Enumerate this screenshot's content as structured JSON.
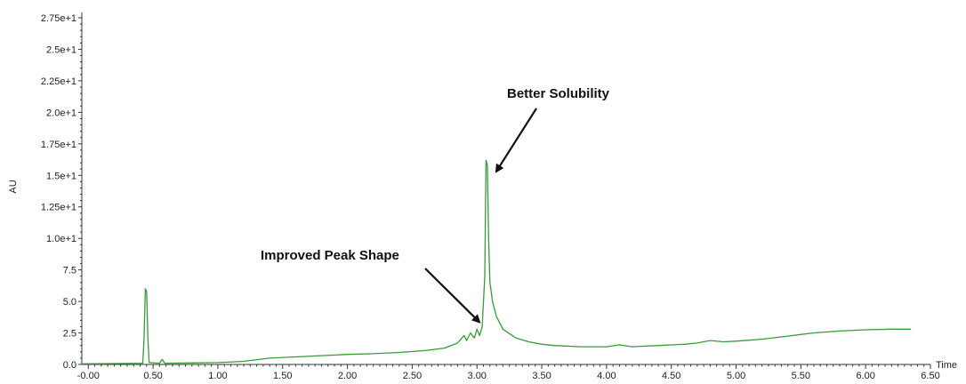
{
  "chart_data": {
    "type": "line",
    "title": "",
    "xlabel": "Time",
    "ylabel": "AU",
    "xlim": [
      -0.05,
      6.5
    ],
    "ylim": [
      0,
      27.5
    ],
    "x_tick_labels": [
      "-0.00",
      "0.50",
      "1.00",
      "1.50",
      "2.00",
      "2.50",
      "3.00",
      "3.50",
      "4.00",
      "4.50",
      "5.00",
      "5.50",
      "6.00",
      "6.50"
    ],
    "x_tick_values": [
      0,
      0.5,
      1,
      1.5,
      2,
      2.5,
      3,
      3.5,
      4,
      4.5,
      5,
      5.5,
      6,
      6.5
    ],
    "y_tick_labels": [
      "0.0",
      "2.5",
      "5.0",
      "7.5",
      "1.0e+1",
      "1.25e+1",
      "1.5e+1",
      "1.75e+1",
      "2.0e+1",
      "2.25e+1",
      "2.5e+1",
      "2.75e+1"
    ],
    "y_tick_values": [
      0,
      2.5,
      5,
      7.5,
      10,
      12.5,
      15,
      17.5,
      20,
      22.5,
      25,
      27.5
    ],
    "grid": false,
    "series": [
      {
        "color": "#3a9a3a",
        "points": [
          [
            -0.05,
            0.05
          ],
          [
            0.3,
            0.08
          ],
          [
            0.42,
            0.1
          ],
          [
            0.43,
            2.0
          ],
          [
            0.44,
            6.0
          ],
          [
            0.45,
            5.8
          ],
          [
            0.46,
            2.0
          ],
          [
            0.47,
            0.15
          ],
          [
            0.55,
            0.1
          ],
          [
            0.57,
            0.4
          ],
          [
            0.59,
            0.1
          ],
          [
            0.8,
            0.12
          ],
          [
            1.0,
            0.15
          ],
          [
            1.2,
            0.25
          ],
          [
            1.4,
            0.5
          ],
          [
            1.6,
            0.6
          ],
          [
            1.8,
            0.7
          ],
          [
            2.0,
            0.8
          ],
          [
            2.2,
            0.85
          ],
          [
            2.4,
            0.95
          ],
          [
            2.6,
            1.1
          ],
          [
            2.75,
            1.3
          ],
          [
            2.85,
            1.7
          ],
          [
            2.9,
            2.3
          ],
          [
            2.92,
            1.9
          ],
          [
            2.95,
            2.5
          ],
          [
            2.98,
            2.1
          ],
          [
            3.0,
            2.8
          ],
          [
            3.02,
            2.3
          ],
          [
            3.04,
            3.0
          ],
          [
            3.06,
            7.0
          ],
          [
            3.07,
            16.2
          ],
          [
            3.08,
            15.8
          ],
          [
            3.09,
            10.0
          ],
          [
            3.1,
            6.5
          ],
          [
            3.12,
            5.0
          ],
          [
            3.15,
            3.8
          ],
          [
            3.2,
            2.8
          ],
          [
            3.3,
            2.1
          ],
          [
            3.4,
            1.8
          ],
          [
            3.5,
            1.6
          ],
          [
            3.6,
            1.5
          ],
          [
            3.7,
            1.45
          ],
          [
            3.8,
            1.4
          ],
          [
            3.9,
            1.4
          ],
          [
            4.0,
            1.4
          ],
          [
            4.1,
            1.55
          ],
          [
            4.2,
            1.4
          ],
          [
            4.3,
            1.45
          ],
          [
            4.4,
            1.5
          ],
          [
            4.5,
            1.55
          ],
          [
            4.6,
            1.6
          ],
          [
            4.7,
            1.7
          ],
          [
            4.8,
            1.9
          ],
          [
            4.9,
            1.8
          ],
          [
            5.0,
            1.85
          ],
          [
            5.2,
            2.0
          ],
          [
            5.4,
            2.25
          ],
          [
            5.6,
            2.5
          ],
          [
            5.8,
            2.65
          ],
          [
            6.0,
            2.75
          ],
          [
            6.2,
            2.8
          ],
          [
            6.35,
            2.8
          ]
        ]
      }
    ],
    "annotations": [
      {
        "text": "Better Solubility",
        "x": 3.08,
        "y": 16.0
      },
      {
        "text": "Improved Peak Shape",
        "x": 3.04,
        "y": 3.0
      }
    ]
  }
}
